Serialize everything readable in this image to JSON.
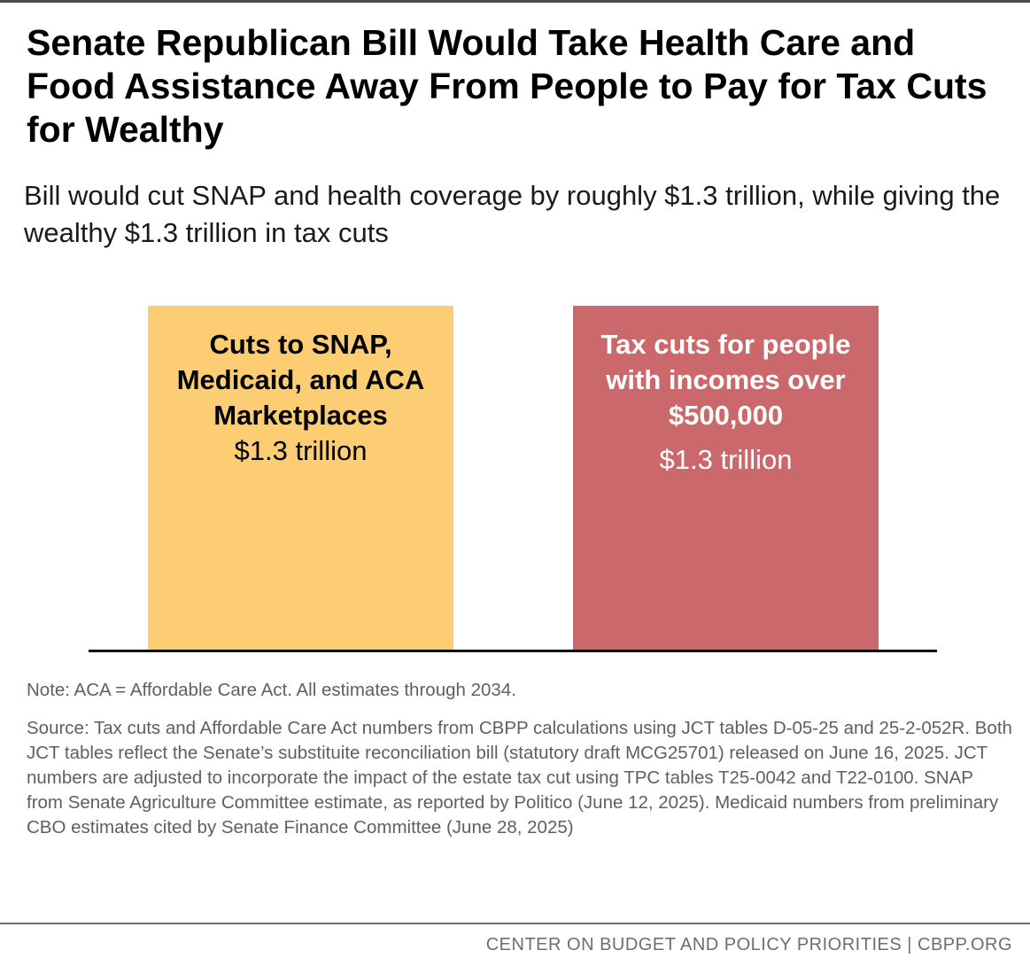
{
  "title": "Senate Republican Bill Would Take Health Care and Food Assistance Away From People to Pay for Tax Cuts for Wealthy",
  "subtitle": "Bill would cut SNAP and health coverage by roughly $1.3 trillion, while giving the wealthy $1.3 trillion in tax cuts",
  "chart_data": {
    "type": "bar",
    "categories": [
      "Cuts to SNAP, Medicaid, and ACA Marketplaces",
      "Tax cuts for people with incomes over $500,000"
    ],
    "values": [
      1.3,
      1.3
    ],
    "value_labels": [
      "$1.3 trillion",
      "$1.3 trillion"
    ],
    "unit": "trillion dollars",
    "colors": [
      "#fccd72",
      "#cb686c"
    ],
    "label_colors": [
      "#000000",
      "#ffffff"
    ],
    "grid": false,
    "legend": "none"
  },
  "note": "Note: ACA = Affordable Care Act. All estimates through 2034.",
  "source": "Source: Tax cuts and Affordable Care Act numbers from CBPP calculations using JCT tables D-05-25 and 25-2-052R. Both JCT tables reflect the Senate’s substituite reconciliation bill (statutory draft MCG25701) released on June 16, 2025. JCT numbers are adjusted to incorporate the impact of the estate tax cut using TPC tables T25-0042 and T22-0100. SNAP from Senate Agriculture Committee estimate, as reported by Politico (June 12, 2025). Medicaid numbers from preliminary CBO estimates cited by Senate Finance Committee (June 28, 2025)",
  "footer": "CENTER ON BUDGET AND POLICY PRIORITIES | CBPP.ORG"
}
